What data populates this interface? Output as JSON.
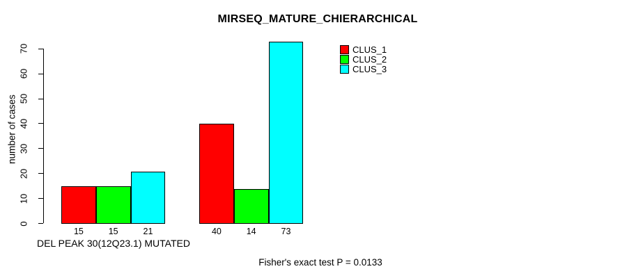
{
  "chart_data": {
    "type": "bar",
    "title": "MIRSEQ_MATURE_CHIERARCHICAL",
    "ylabel": "number of cases",
    "xlabel": "DEL PEAK 30(12Q23.1) MUTATED",
    "annotation": "Fisher's exact test P = 0.0133",
    "ylim": [
      0,
      73
    ],
    "yticks": [
      0,
      10,
      20,
      30,
      40,
      50,
      60,
      70
    ],
    "grid": false,
    "legend_position": "top-right",
    "groups": 2,
    "series": [
      {
        "name": "CLUS_1",
        "color": "#ff0000",
        "values": [
          15,
          40
        ]
      },
      {
        "name": "CLUS_2",
        "color": "#00ff00",
        "values": [
          15,
          14
        ]
      },
      {
        "name": "CLUS_3",
        "color": "#00ffff",
        "values": [
          21,
          73
        ]
      }
    ]
  },
  "colors": {
    "foreground": "#000000",
    "background": "#ffffff"
  }
}
